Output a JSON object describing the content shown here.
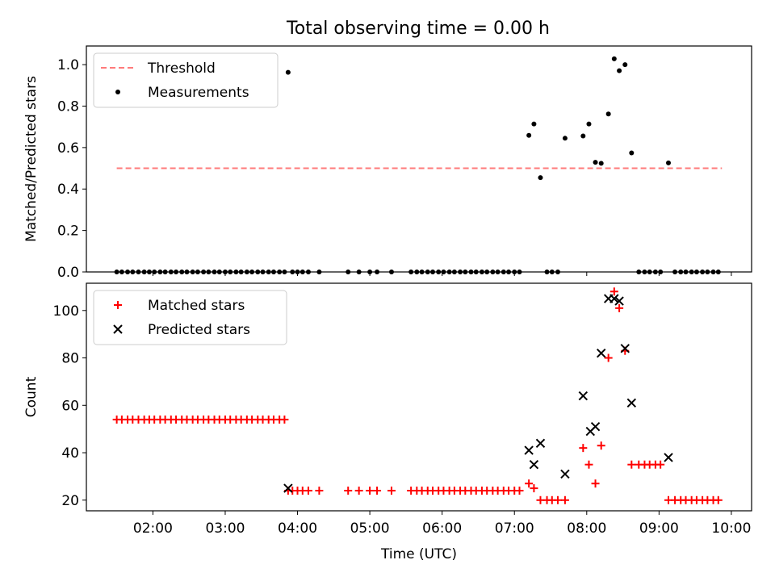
{
  "title": "Total observing time = 0.00 h",
  "chart_data": [
    {
      "type": "scatter",
      "ylabel": "Matched/Predicted stars",
      "xlabel": "",
      "xlim": [
        1.08,
        10.28
      ],
      "ylim": [
        0,
        1.09
      ],
      "yticks": [
        0.0,
        0.2,
        0.4,
        0.6,
        0.8,
        1.0
      ],
      "ytick_labels": [
        "0.0",
        "0.2",
        "0.4",
        "0.6",
        "0.8",
        "1.0"
      ],
      "xticks": [
        2,
        3,
        4,
        5,
        6,
        7,
        8,
        9,
        10
      ],
      "legend": {
        "position": "top-left",
        "entries": [
          "Threshold",
          "Measurements"
        ]
      },
      "threshold": {
        "name": "Threshold",
        "y": 0.5,
        "x": [
          1.5,
          9.87
        ],
        "color": "#ff7a7a"
      },
      "series": [
        {
          "name": "Measurements",
          "color": "#000000",
          "x": [
            1.5,
            1.57,
            1.65,
            1.72,
            1.8,
            1.88,
            1.95,
            2.02,
            2.1,
            2.17,
            2.25,
            2.32,
            2.4,
            2.47,
            2.55,
            2.62,
            2.7,
            2.77,
            2.85,
            2.92,
            3.0,
            3.07,
            3.15,
            3.22,
            3.3,
            3.37,
            3.45,
            3.52,
            3.6,
            3.67,
            3.75,
            3.82,
            3.87,
            3.93,
            4.0,
            4.07,
            4.15,
            4.3,
            4.7,
            4.85,
            5.0,
            5.1,
            5.3,
            5.57,
            5.65,
            5.72,
            5.8,
            5.87,
            5.95,
            6.02,
            6.1,
            6.17,
            6.25,
            6.32,
            6.4,
            6.47,
            6.55,
            6.62,
            6.7,
            6.77,
            6.85,
            6.92,
            7.0,
            7.07,
            7.2,
            7.27,
            7.36,
            7.45,
            7.52,
            7.6,
            7.7,
            7.95,
            8.03,
            8.12,
            8.2,
            8.3,
            8.38,
            8.45,
            8.53,
            8.62,
            8.72,
            8.8,
            8.87,
            8.95,
            9.02,
            9.13,
            9.22,
            9.3,
            9.37,
            9.45,
            9.52,
            9.6,
            9.67,
            9.75,
            9.82
          ],
          "y": [
            0,
            0,
            0,
            0,
            0,
            0,
            0,
            0,
            0,
            0,
            0,
            0,
            0,
            0,
            0,
            0,
            0,
            0,
            0,
            0,
            0,
            0,
            0,
            0,
            0,
            0,
            0,
            0,
            0,
            0,
            0,
            0,
            0.963,
            0,
            0,
            0,
            0,
            0,
            0,
            0,
            0,
            0,
            0,
            0,
            0,
            0,
            0,
            0,
            0,
            0,
            0,
            0,
            0,
            0,
            0,
            0,
            0,
            0,
            0,
            0,
            0,
            0,
            0,
            0,
            0.659,
            0.714,
            0.455,
            0,
            0,
            0,
            0.645,
            0.656,
            0.714,
            0.529,
            0.524,
            0.762,
            1.028,
            0.971,
            1.0,
            0.574,
            0,
            0,
            0,
            0,
            0,
            0.526,
            0,
            0,
            0,
            0,
            0,
            0,
            0,
            0,
            0
          ]
        }
      ]
    },
    {
      "type": "scatter",
      "ylabel": "Count",
      "xlabel": "Time (UTC)",
      "xlim": [
        1.08,
        10.28
      ],
      "ylim": [
        15.5,
        111.5
      ],
      "yticks": [
        20,
        40,
        60,
        80,
        100
      ],
      "ytick_labels": [
        "20",
        "40",
        "60",
        "80",
        "100"
      ],
      "xticks": [
        2,
        3,
        4,
        5,
        6,
        7,
        8,
        9,
        10
      ],
      "xtick_labels": [
        "02:00",
        "03:00",
        "04:00",
        "05:00",
        "06:00",
        "07:00",
        "08:00",
        "09:00",
        "10:00"
      ],
      "legend": {
        "position": "top-left",
        "entries": [
          "Matched stars",
          "Predicted stars"
        ]
      },
      "series": [
        {
          "name": "Matched stars",
          "marker": "plus",
          "color": "#ff0000",
          "x": [
            1.5,
            1.57,
            1.65,
            1.72,
            1.8,
            1.88,
            1.95,
            2.02,
            2.1,
            2.17,
            2.25,
            2.32,
            2.4,
            2.47,
            2.55,
            2.62,
            2.7,
            2.77,
            2.85,
            2.92,
            3.0,
            3.07,
            3.15,
            3.22,
            3.3,
            3.37,
            3.45,
            3.52,
            3.6,
            3.67,
            3.75,
            3.82,
            3.87,
            3.93,
            4.0,
            4.07,
            4.15,
            4.3,
            4.7,
            4.85,
            5.0,
            5.1,
            5.3,
            5.57,
            5.65,
            5.72,
            5.8,
            5.87,
            5.95,
            6.02,
            6.1,
            6.17,
            6.25,
            6.32,
            6.4,
            6.47,
            6.55,
            6.62,
            6.7,
            6.77,
            6.85,
            6.92,
            7.0,
            7.07,
            7.2,
            7.27,
            7.36,
            7.45,
            7.52,
            7.6,
            7.7,
            7.95,
            8.03,
            8.12,
            8.2,
            8.3,
            8.38,
            8.45,
            8.53,
            8.62,
            8.72,
            8.8,
            8.87,
            8.95,
            9.02,
            9.13,
            9.22,
            9.3,
            9.37,
            9.45,
            9.52,
            9.6,
            9.67,
            9.75,
            9.82
          ],
          "y": [
            54,
            54,
            54,
            54,
            54,
            54,
            54,
            54,
            54,
            54,
            54,
            54,
            54,
            54,
            54,
            54,
            54,
            54,
            54,
            54,
            54,
            54,
            54,
            54,
            54,
            54,
            54,
            54,
            54,
            54,
            54,
            54,
            24,
            24,
            24,
            24,
            24,
            24,
            24,
            24,
            24,
            24,
            24,
            24,
            24,
            24,
            24,
            24,
            24,
            24,
            24,
            24,
            24,
            24,
            24,
            24,
            24,
            24,
            24,
            24,
            24,
            24,
            24,
            24,
            27,
            25,
            20,
            20,
            20,
            20,
            20,
            42,
            35,
            27,
            43,
            80,
            108,
            101,
            83,
            35,
            35,
            35,
            35,
            35,
            35,
            20,
            20,
            20,
            20,
            20,
            20,
            20,
            20,
            20,
            20
          ]
        },
        {
          "name": "Predicted stars",
          "marker": "x",
          "color": "#000000",
          "x": [
            3.87,
            7.2,
            7.27,
            7.36,
            7.7,
            7.95,
            8.05,
            8.12,
            8.2,
            8.3,
            8.38,
            8.45,
            8.53,
            8.62,
            9.13
          ],
          "y": [
            25,
            41,
            35,
            44,
            31,
            64,
            49,
            51,
            82,
            105,
            105,
            104,
            84,
            61,
            38
          ]
        }
      ]
    }
  ]
}
